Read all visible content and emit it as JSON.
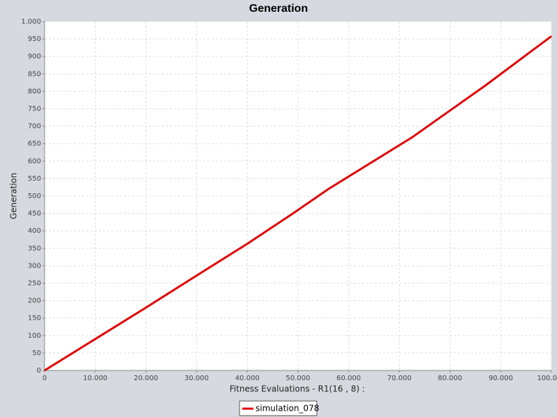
{
  "chart_data": {
    "type": "line",
    "title": "Generation",
    "x_label": "Fitness Evaluations - R1(16 , 8) :",
    "y_label": "Generation",
    "x": [
      0,
      10000,
      20000,
      30000,
      40000,
      49000,
      56000,
      72500,
      87000,
      100000
    ],
    "series": [
      {
        "name": "simulation_078",
        "color": "#e00000",
        "values": [
          0,
          90,
          180,
          272,
          363,
          450,
          520,
          668,
          817,
          958
        ]
      }
    ],
    "xlim": [
      0,
      100000
    ],
    "xticks": [
      0,
      {
        "value": 10000,
        "label": "10.000"
      },
      {
        "value": 20000,
        "label": "20.000"
      },
      {
        "value": 30000,
        "label": "30.000"
      },
      {
        "value": 40000,
        "label": "40.000"
      },
      {
        "value": 50000,
        "label": "50.000"
      },
      {
        "value": 60000,
        "label": "60.000"
      },
      {
        "value": 70000,
        "label": "70.000"
      },
      {
        "value": 80000,
        "label": "80.000"
      },
      {
        "value": 90000,
        "label": "90.000"
      },
      {
        "value": 100000,
        "label": "100.000"
      }
    ],
    "ylim": [
      0,
      1000
    ],
    "yticks": [
      0,
      50,
      100,
      150,
      200,
      250,
      300,
      350,
      400,
      450,
      500,
      550,
      600,
      650,
      700,
      750,
      800,
      850,
      900,
      950,
      {
        "value": 1000,
        "label": "1.000"
      }
    ],
    "grid": true
  }
}
